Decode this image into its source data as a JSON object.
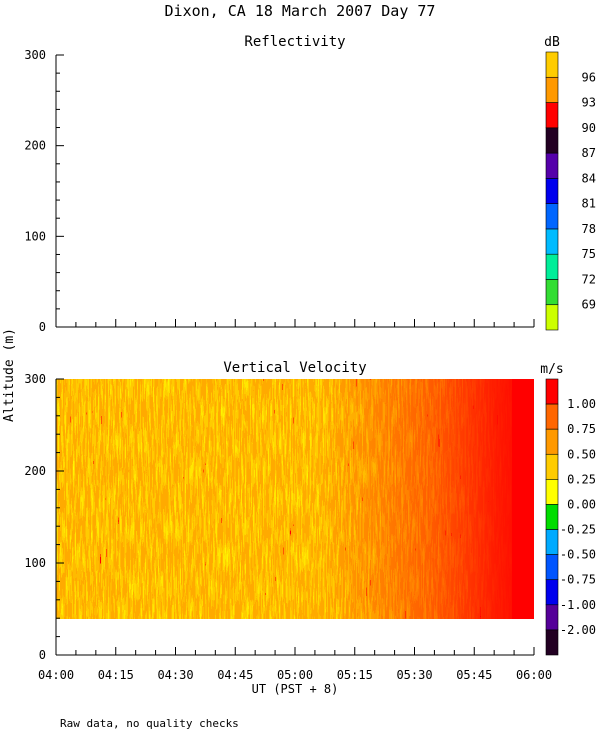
{
  "page": {
    "title": "Dixon, CA 18 March 2007  Day  77",
    "footnote": "Raw data, no quality checks",
    "y_axis_shared_label": "Altitude (m)"
  },
  "chart_data": [
    {
      "type": "heatmap",
      "title": "Reflectivity",
      "colorbar_unit": "dB",
      "colorbar_ticks": [
        "69",
        "72",
        "75",
        "78",
        "81",
        "84",
        "87",
        "90",
        "93",
        "96"
      ],
      "colorbar_colors": [
        "#ccff00",
        "#33dd33",
        "#00ee99",
        "#00bbff",
        "#0066ff",
        "#0000ee",
        "#5500aa",
        "#220022",
        "#ff0000",
        "#ff9900",
        "#ffcc00"
      ],
      "x_ticks": [
        "04:00",
        "04:15",
        "04:30",
        "04:45",
        "05:00",
        "05:15",
        "05:30",
        "05:45",
        "06:00"
      ],
      "y_ticks": [
        0,
        100,
        200,
        300
      ],
      "ylim": [
        0,
        300
      ],
      "values": []
    },
    {
      "type": "heatmap",
      "title": "Vertical Velocity",
      "colorbar_unit": "m/s",
      "colorbar_ticks": [
        "1.00",
        "0.75",
        "0.50",
        "0.25",
        "0.00",
        "-0.25",
        "-0.50",
        "-0.75",
        "-1.00",
        "-2.00"
      ],
      "colorbar_colors": [
        "#ff0000",
        "#ff6600",
        "#ff9900",
        "#ffcc00",
        "#ffff00",
        "#00dd00",
        "#00aaff",
        "#0055ff",
        "#0000ee",
        "#550099",
        "#220022"
      ],
      "x_ticks": [
        "04:00",
        "04:15",
        "04:30",
        "04:45",
        "05:00",
        "05:15",
        "05:30",
        "05:45",
        "06:00"
      ],
      "xlabel": "UT  (PST + 8)",
      "y_ticks": [
        0,
        100,
        200,
        300
      ],
      "ylim": [
        0,
        300
      ],
      "data_altitude_range": [
        40,
        300
      ],
      "data_time_range": [
        "04:00",
        "06:00"
      ]
    }
  ]
}
